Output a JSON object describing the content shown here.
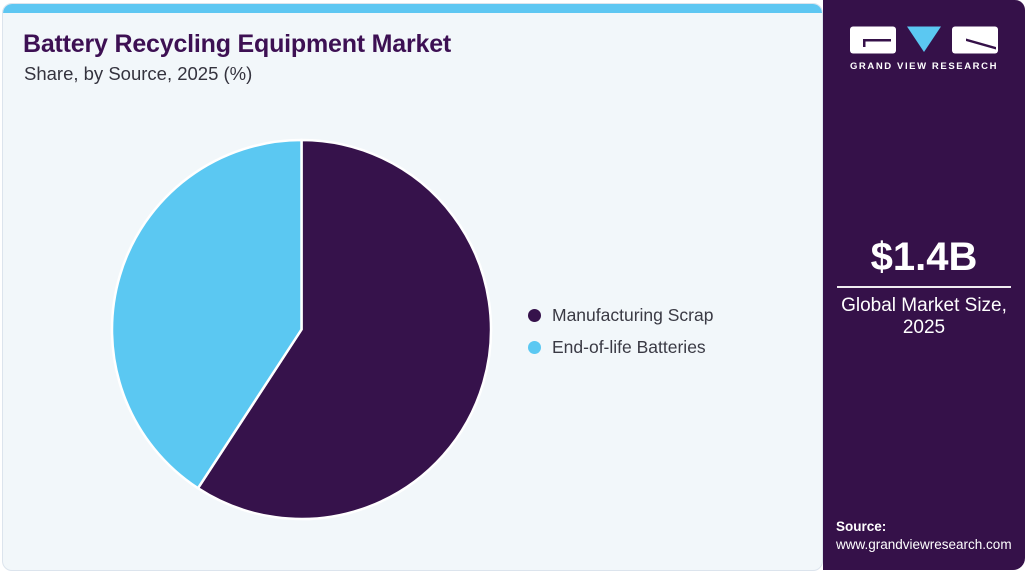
{
  "chart_data": {
    "type": "pie",
    "title": "Battery Recycling Equipment Market",
    "subtitle": "Share, by Source, 2025 (%)",
    "categories": [
      "Manufacturing Scrap",
      "End-of-life Batteries"
    ],
    "values": [
      59.2,
      40.8
    ],
    "unit": "%",
    "colors": [
      "#36124B",
      "#5BC8F2"
    ],
    "legend_position": "right",
    "start_angle_deg": 0,
    "direction": "clockwise",
    "grid": false
  },
  "sidebar": {
    "brand": "GRAND VIEW RESEARCH",
    "market_size": {
      "value": "$1.4B",
      "label_line1": "Global Market Size,",
      "label_line2": "2025"
    },
    "source": {
      "label": "Source:",
      "url": "www.grandviewresearch.com"
    }
  },
  "theme": {
    "topbar_blue": "#5EC7F2",
    "card_background": "#F2F7FA",
    "sidebar_background": "#351149",
    "title_color": "#3D1053",
    "pie_dark_purple": "#36124B",
    "pie_light_blue": "#5BC8F2"
  }
}
